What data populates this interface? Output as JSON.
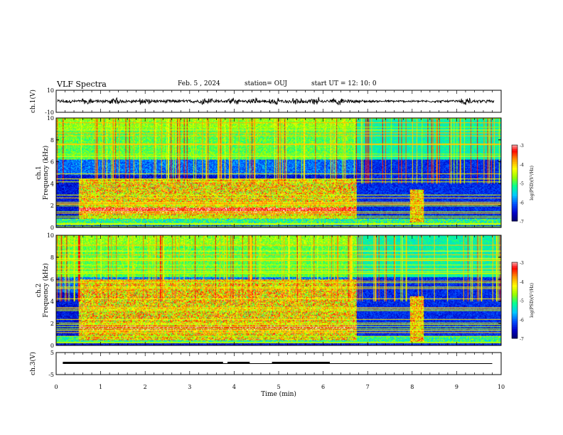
{
  "header": {
    "title": "VLF Spectra",
    "date": "Feb. 5 , 2024",
    "station": "station= OUJ",
    "start": "start  UT =   12: 10: 0"
  },
  "colors": {
    "spectrogram_palette": [
      "#000064",
      "#0000c8",
      "#0050ff",
      "#00c8ff",
      "#00ff96",
      "#96ff00",
      "#ffff00",
      "#ff9600",
      "#ff0000",
      "#ffffff"
    ]
  },
  "chart_data": [
    {
      "type": "line",
      "panel": "ch1-waveform",
      "ylabel": "ch.1(V)",
      "ylim": [
        -10,
        10
      ],
      "yticks": [
        "10",
        "-10"
      ],
      "xlim": [
        0,
        10
      ],
      "baseline": 0,
      "bursts_at_min": [
        0.7,
        1.3,
        2.0,
        3.4,
        4.0,
        4.4,
        4.9,
        5.4,
        5.8,
        6.3,
        9.2
      ]
    },
    {
      "type": "heatmap",
      "panel": "ch1-spectrogram",
      "ylabel": "ch.1\nFrequency (kHz)",
      "ylim": [
        0,
        10
      ],
      "yticks": [
        "0",
        "2",
        "4",
        "6",
        "8",
        "10"
      ],
      "xlim": [
        0,
        10
      ],
      "colorbar": {
        "label": "log(PSD)(V²/Hz)",
        "range": [
          -7,
          -3
        ],
        "ticks": [
          "-3",
          "-4",
          "-5",
          "-6",
          "-7"
        ]
      },
      "features": [
        {
          "name": "broadband noise",
          "t": [
            0.5,
            6.75
          ],
          "f": [
            0.8,
            4.5
          ]
        },
        {
          "name": "burst",
          "t": [
            7.95,
            8.25
          ],
          "f": [
            0.5,
            3.5
          ]
        }
      ]
    },
    {
      "type": "heatmap",
      "panel": "ch2-spectrogram",
      "ylabel": "ch.2\nFrequency (kHz)",
      "ylim": [
        0,
        10
      ],
      "yticks": [
        "0",
        "2",
        "4",
        "6",
        "8",
        "10"
      ],
      "xlim": [
        0,
        10
      ],
      "colorbar": {
        "label": "log(PSD)(V²/Hz)",
        "range": [
          -7,
          -3
        ],
        "ticks": [
          "-3",
          "-4",
          "-5",
          "-6",
          "-7"
        ]
      },
      "features": [
        {
          "name": "broadband noise",
          "t": [
            0.5,
            6.75
          ],
          "f": [
            0.5,
            6.0
          ]
        },
        {
          "name": "burst",
          "t": [
            7.95,
            8.25
          ],
          "f": [
            0.3,
            4.5
          ]
        }
      ]
    },
    {
      "type": "line",
      "panel": "ch3-signal",
      "ylabel": "ch.3(V)",
      "ylim": [
        -5,
        5
      ],
      "yticks": [
        "5",
        "-5"
      ],
      "xlim": [
        0,
        10
      ],
      "xlabel": "Time (min)",
      "xticks": [
        "0",
        "1",
        "2",
        "3",
        "4",
        "5",
        "6",
        "7",
        "8",
        "9",
        "10"
      ],
      "level": 0,
      "thick_segments": [
        [
          0.15,
          3.75
        ],
        [
          3.85,
          4.35
        ],
        [
          4.85,
          6.15
        ]
      ]
    }
  ]
}
